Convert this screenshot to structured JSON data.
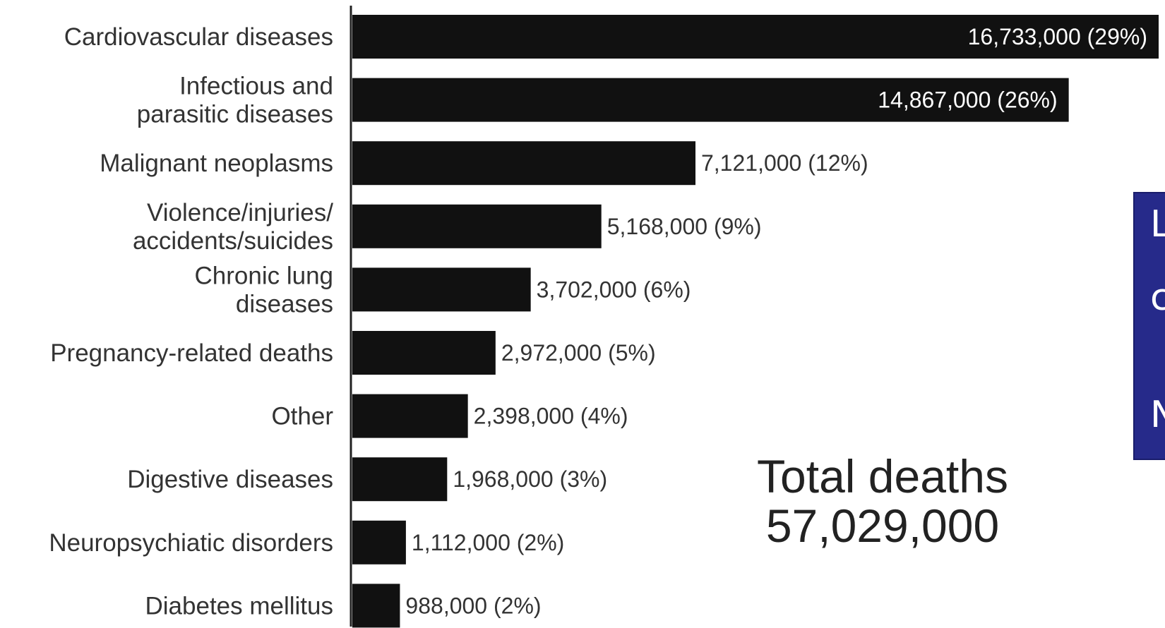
{
  "chart_data": {
    "type": "bar",
    "orientation": "horizontal",
    "categories": [
      [
        "Cardiovascular diseases"
      ],
      [
        "Infectious and",
        "parasitic diseases"
      ],
      [
        "Malignant neoplasms"
      ],
      [
        "Violence/injuries/",
        "accidents/suicides"
      ],
      [
        "Chronic lung",
        "diseases"
      ],
      [
        "Pregnancy-related deaths"
      ],
      [
        "Other"
      ],
      [
        "Digestive diseases"
      ],
      [
        "Neuropsychiatic disorders"
      ],
      [
        "Diabetes mellitus"
      ]
    ],
    "values": [
      16733000,
      14867000,
      7121000,
      5168000,
      3702000,
      2972000,
      2398000,
      1968000,
      1112000,
      988000
    ],
    "value_labels": [
      "16,733,000 (29%)",
      "14,867,000 (26%)",
      "7,121,000 (12%)",
      "5,168,000 (9%)",
      "3,702,000 (6%)",
      "2,972,000 (5%)",
      "2,398,000 (4%)",
      "1,968,000 (3%)",
      "1,112,000 (2%)",
      "988,000 (2%)"
    ],
    "label_inside_bar": [
      true,
      true,
      false,
      false,
      false,
      false,
      false,
      false,
      false,
      false
    ],
    "xlim": [
      0,
      16733000
    ],
    "grid": false,
    "bar_color": "#111111",
    "title": "",
    "xlabel": "",
    "ylabel": ""
  },
  "annotation": {
    "line1": "Total deaths",
    "line2": "57,029,000"
  },
  "side_panel": {
    "letters": [
      "L",
      "c",
      "N"
    ],
    "background": "#262a8a"
  }
}
